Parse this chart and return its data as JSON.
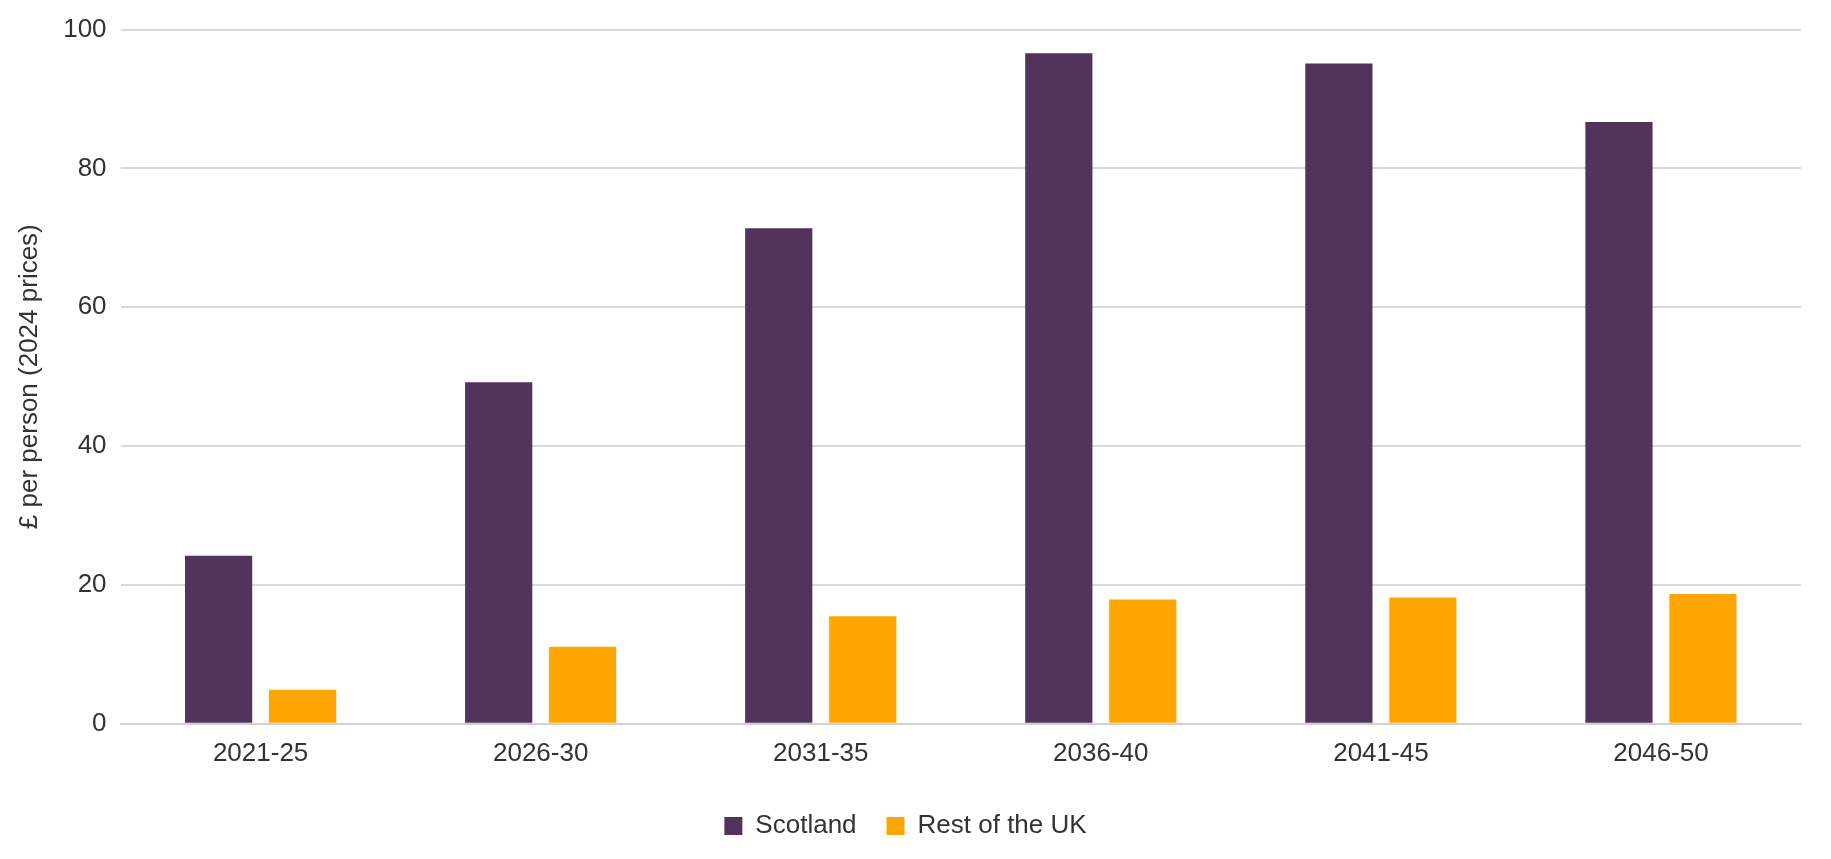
{
  "chart_data": {
    "type": "bar",
    "ylabel": "£ per person (2024 prices)",
    "categories": [
      "2021-25",
      "2026-30",
      "2031-35",
      "2036-40",
      "2041-45",
      "2046-50"
    ],
    "series": [
      {
        "name": "Scotland",
        "color": "#51335c",
        "values": [
          24.2,
          49.2,
          71.4,
          96.6,
          95.1,
          86.7
        ]
      },
      {
        "name": "Rest of the UK",
        "color": "#ffa500",
        "values": [
          4.9,
          11.1,
          15.5,
          17.9,
          18.2,
          18.7
        ]
      }
    ],
    "ylim": [
      0,
      100
    ],
    "yticks": [
      0,
      20,
      40,
      60,
      80,
      100
    ],
    "grid": "y",
    "legend": "bottom"
  }
}
